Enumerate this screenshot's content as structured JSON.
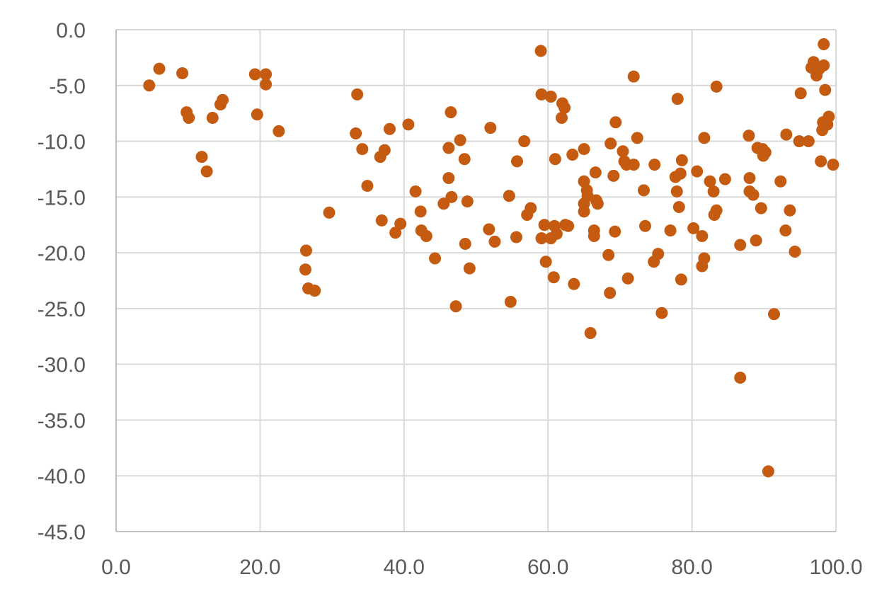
{
  "chart_data": {
    "type": "scatter",
    "title": "",
    "xlabel": "",
    "ylabel": "",
    "xlim": [
      0,
      100
    ],
    "ylim": [
      -45,
      0
    ],
    "x_ticks": [
      "0.0",
      "20.0",
      "40.0",
      "60.0",
      "80.0",
      "100.0"
    ],
    "y_ticks": [
      "0.0",
      "-5.0",
      "-10.0",
      "-15.0",
      "-20.0",
      "-25.0",
      "-30.0",
      "-35.0",
      "-40.0",
      "-45.0"
    ],
    "grid": true,
    "legend": "none",
    "marker_color": "#C55A11",
    "series": [
      {
        "points": [
          [
            4.6,
            -5.0
          ],
          [
            6.0,
            -3.5
          ],
          [
            9.2,
            -3.9
          ],
          [
            9.8,
            -7.4
          ],
          [
            10.1,
            -7.9
          ],
          [
            11.9,
            -11.4
          ],
          [
            12.6,
            -12.7
          ],
          [
            13.4,
            -7.9
          ],
          [
            14.5,
            -6.7
          ],
          [
            14.8,
            -6.3
          ],
          [
            19.3,
            -4.0
          ],
          [
            19.6,
            -7.6
          ],
          [
            20.8,
            -4.0
          ],
          [
            20.8,
            -4.9
          ],
          [
            22.6,
            -9.1
          ],
          [
            26.4,
            -19.8
          ],
          [
            26.3,
            -21.5
          ],
          [
            26.7,
            -23.2
          ],
          [
            27.6,
            -23.4
          ],
          [
            29.6,
            -16.4
          ],
          [
            33.3,
            -9.3
          ],
          [
            33.5,
            -5.8
          ],
          [
            34.2,
            -10.7
          ],
          [
            34.9,
            -14.0
          ],
          [
            36.7,
            -11.4
          ],
          [
            36.9,
            -17.1
          ],
          [
            37.3,
            -10.8
          ],
          [
            38.0,
            -8.9
          ],
          [
            38.8,
            -18.2
          ],
          [
            39.5,
            -17.4
          ],
          [
            40.6,
            -8.5
          ],
          [
            41.6,
            -14.5
          ],
          [
            42.3,
            -16.3
          ],
          [
            42.4,
            -18.0
          ],
          [
            43.1,
            -18.5
          ],
          [
            44.3,
            -20.5
          ],
          [
            45.5,
            -15.6
          ],
          [
            46.2,
            -10.6
          ],
          [
            46.2,
            -13.3
          ],
          [
            46.5,
            -7.4
          ],
          [
            46.6,
            -15.0
          ],
          [
            47.2,
            -24.8
          ],
          [
            47.8,
            -9.9
          ],
          [
            48.4,
            -11.6
          ],
          [
            48.5,
            -19.2
          ],
          [
            48.8,
            -15.4
          ],
          [
            49.1,
            -21.4
          ],
          [
            51.8,
            -17.9
          ],
          [
            52.0,
            -8.8
          ],
          [
            52.6,
            -19.0
          ],
          [
            54.6,
            -14.9
          ],
          [
            54.8,
            -24.4
          ],
          [
            55.6,
            -18.6
          ],
          [
            55.7,
            -11.8
          ],
          [
            56.7,
            -10.0
          ],
          [
            57.1,
            -16.6
          ],
          [
            57.6,
            -16.0
          ],
          [
            59.0,
            -1.9
          ],
          [
            59.1,
            -5.8
          ],
          [
            59.1,
            -18.7
          ],
          [
            59.5,
            -17.5
          ],
          [
            59.7,
            -20.8
          ],
          [
            60.4,
            -18.7
          ],
          [
            60.4,
            -6.0
          ],
          [
            60.8,
            -22.2
          ],
          [
            60.9,
            -17.6
          ],
          [
            61.0,
            -11.6
          ],
          [
            61.2,
            -18.3
          ],
          [
            61.9,
            -7.9
          ],
          [
            62.0,
            -6.6
          ],
          [
            62.3,
            -7.0
          ],
          [
            62.4,
            -17.5
          ],
          [
            62.8,
            -17.6
          ],
          [
            63.4,
            -11.2
          ],
          [
            63.6,
            -22.8
          ],
          [
            65.0,
            -10.7
          ],
          [
            65.0,
            -13.6
          ],
          [
            65.0,
            -15.6
          ],
          [
            65.0,
            -16.3
          ],
          [
            65.4,
            -14.4
          ],
          [
            65.5,
            -14.9
          ],
          [
            65.9,
            -27.2
          ],
          [
            66.4,
            -18.0
          ],
          [
            66.4,
            -18.5
          ],
          [
            66.6,
            -12.8
          ],
          [
            66.7,
            -15.3
          ],
          [
            66.9,
            -15.6
          ],
          [
            68.4,
            -20.2
          ],
          [
            68.6,
            -23.6
          ],
          [
            68.7,
            -10.2
          ],
          [
            69.1,
            -13.1
          ],
          [
            69.3,
            -18.1
          ],
          [
            69.4,
            -8.3
          ],
          [
            70.4,
            -10.9
          ],
          [
            70.6,
            -11.8
          ],
          [
            70.9,
            -12.1
          ],
          [
            71.1,
            -22.3
          ],
          [
            71.9,
            -4.2
          ],
          [
            71.9,
            -12.1
          ],
          [
            72.4,
            -9.7
          ],
          [
            73.3,
            -14.4
          ],
          [
            73.5,
            -17.6
          ],
          [
            74.7,
            -20.8
          ],
          [
            74.8,
            -12.1
          ],
          [
            75.3,
            -20.1
          ],
          [
            75.8,
            -25.4
          ],
          [
            77.0,
            -18.0
          ],
          [
            77.7,
            -13.2
          ],
          [
            77.9,
            -14.5
          ],
          [
            78.0,
            -6.2
          ],
          [
            78.2,
            -15.9
          ],
          [
            78.4,
            -12.9
          ],
          [
            78.5,
            -22.4
          ],
          [
            78.6,
            -11.7
          ],
          [
            80.2,
            -17.8
          ],
          [
            80.7,
            -12.7
          ],
          [
            81.4,
            -21.2
          ],
          [
            81.4,
            -18.5
          ],
          [
            81.7,
            -20.5
          ],
          [
            81.7,
            -9.7
          ],
          [
            82.5,
            -13.6
          ],
          [
            83.0,
            -14.5
          ],
          [
            83.1,
            -16.6
          ],
          [
            83.4,
            -5.1
          ],
          [
            83.4,
            -16.2
          ],
          [
            84.6,
            -13.4
          ],
          [
            86.7,
            -19.3
          ],
          [
            86.7,
            -31.2
          ],
          [
            87.9,
            -9.5
          ],
          [
            88.0,
            -13.3
          ],
          [
            88.0,
            -14.5
          ],
          [
            88.5,
            -14.8
          ],
          [
            88.9,
            -18.9
          ],
          [
            89.1,
            -10.6
          ],
          [
            89.6,
            -16.0
          ],
          [
            89.8,
            -10.7
          ],
          [
            89.9,
            -11.3
          ],
          [
            90.2,
            -11.0
          ],
          [
            90.6,
            -39.6
          ],
          [
            91.4,
            -25.5
          ],
          [
            92.3,
            -13.6
          ],
          [
            93.0,
            -18.0
          ],
          [
            93.1,
            -9.4
          ],
          [
            93.6,
            -16.2
          ],
          [
            94.3,
            -19.9
          ],
          [
            94.9,
            -10.0
          ],
          [
            95.1,
            -5.7
          ],
          [
            96.2,
            -10.0
          ],
          [
            96.6,
            -3.4
          ],
          [
            96.9,
            -2.9
          ],
          [
            97.3,
            -4.1
          ],
          [
            97.7,
            -3.5
          ],
          [
            97.9,
            -11.8
          ],
          [
            98.1,
            -9.0
          ],
          [
            98.2,
            -8.3
          ],
          [
            98.3,
            -1.3
          ],
          [
            98.3,
            -3.2
          ],
          [
            98.5,
            -5.4
          ],
          [
            98.8,
            -8.5
          ],
          [
            99.0,
            -7.8
          ],
          [
            99.6,
            -12.1
          ]
        ]
      }
    ]
  }
}
